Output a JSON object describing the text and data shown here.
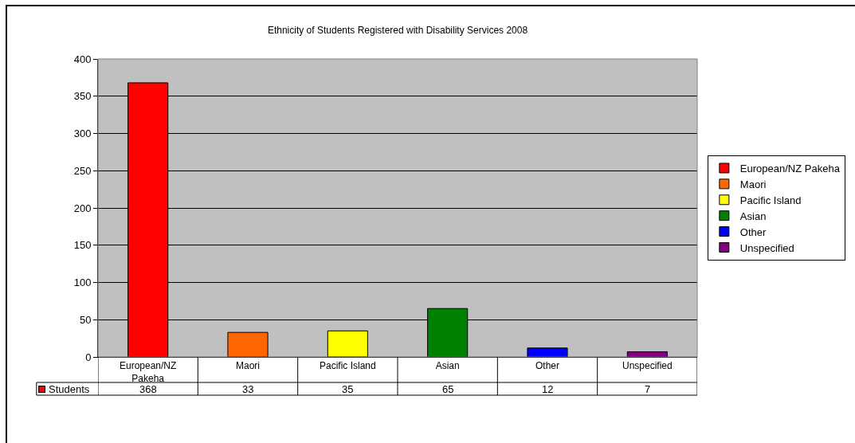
{
  "chart_data": {
    "type": "bar",
    "title": "Ethnicity of Students Registered with Disability Services 2008",
    "categories": [
      "European/NZ Pakeha",
      "Maori",
      "Pacific Island",
      "Asian",
      "Other",
      "Unspecified"
    ],
    "series": [
      {
        "name": "European/NZ Pakeha",
        "color": "#ff0000",
        "values": [
          368,
          null,
          null,
          null,
          null,
          null
        ]
      },
      {
        "name": "Maori",
        "color": "#ff6600",
        "values": [
          null,
          33,
          null,
          null,
          null,
          null
        ]
      },
      {
        "name": "Pacific Island",
        "color": "#ffff00",
        "values": [
          null,
          null,
          35,
          null,
          null,
          null
        ]
      },
      {
        "name": "Asian",
        "color": "#008000",
        "values": [
          null,
          null,
          null,
          65,
          null,
          null
        ]
      },
      {
        "name": "Other",
        "color": "#0000ff",
        "values": [
          null,
          null,
          null,
          null,
          12,
          null
        ]
      },
      {
        "name": "Unspecified",
        "color": "#800080",
        "values": [
          null,
          null,
          null,
          null,
          null,
          7
        ]
      }
    ],
    "ylim": [
      0,
      400
    ],
    "yticks": [
      0,
      50,
      100,
      150,
      200,
      250,
      300,
      350,
      400
    ],
    "grid": "y",
    "legend": "right",
    "data_labels": true,
    "annotations": [
      "Students"
    ]
  }
}
